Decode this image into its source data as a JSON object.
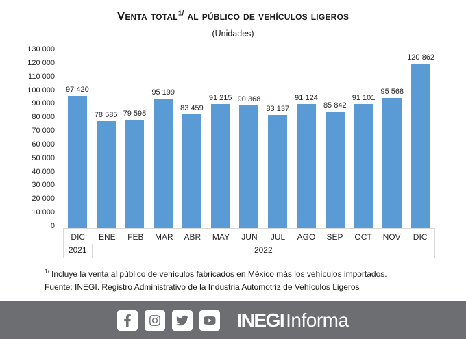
{
  "title": {
    "part1": "Venta total",
    "superscript": "1/",
    "part2": " al público de vehículos ligeros",
    "subtitle": "(Unidades)"
  },
  "chart_data": {
    "type": "bar",
    "title": "Venta total 1/ al público de vehículos ligeros",
    "subtitle": "(Unidades)",
    "categories": [
      "DIC",
      "ENE",
      "FEB",
      "MAR",
      "ABR",
      "MAY",
      "JUN",
      "JUL",
      "AGO",
      "SEP",
      "OCT",
      "NOV",
      "DIC"
    ],
    "values": [
      97420,
      78585,
      79598,
      95199,
      83459,
      91215,
      90368,
      83137,
      91124,
      85842,
      91101,
      95568,
      120862
    ],
    "value_labels": [
      "97 420",
      "78 585",
      "79 598",
      "95 199",
      "83 459",
      "91 215",
      "90 368",
      "83 137",
      "91 124",
      "85 842",
      "91 101",
      "95 568",
      "120 862"
    ],
    "year_groups": [
      {
        "label": "2021",
        "span": 1
      },
      {
        "label": "2022",
        "span": 12
      }
    ],
    "ytick_labels": [
      "130 000",
      "120 000",
      "110 000",
      "100 000",
      "90 000",
      "80 000",
      "70 000",
      "60 000",
      "50 000",
      "40 000",
      "30 000",
      "20 000",
      "10 000",
      "0"
    ],
    "ylim": [
      0,
      130000
    ],
    "grid": false,
    "legend": "none",
    "bar_color": "#5B9BD5"
  },
  "footnotes": {
    "note1_superscript": "1/",
    "note1_text": " Incluye la venta al público de vehículos fabricados en México más los vehículos importados.",
    "note2_text": "Fuente: INEGI. Registro Administrativo de la Industria Automotriz de Vehículos Ligeros"
  },
  "footer": {
    "bg_color": "#6D6E71",
    "icons": [
      "facebook-icon",
      "instagram-icon",
      "twitter-icon",
      "youtube-icon"
    ],
    "brand_bold": "INEGI",
    "brand_regular": "Informa"
  }
}
